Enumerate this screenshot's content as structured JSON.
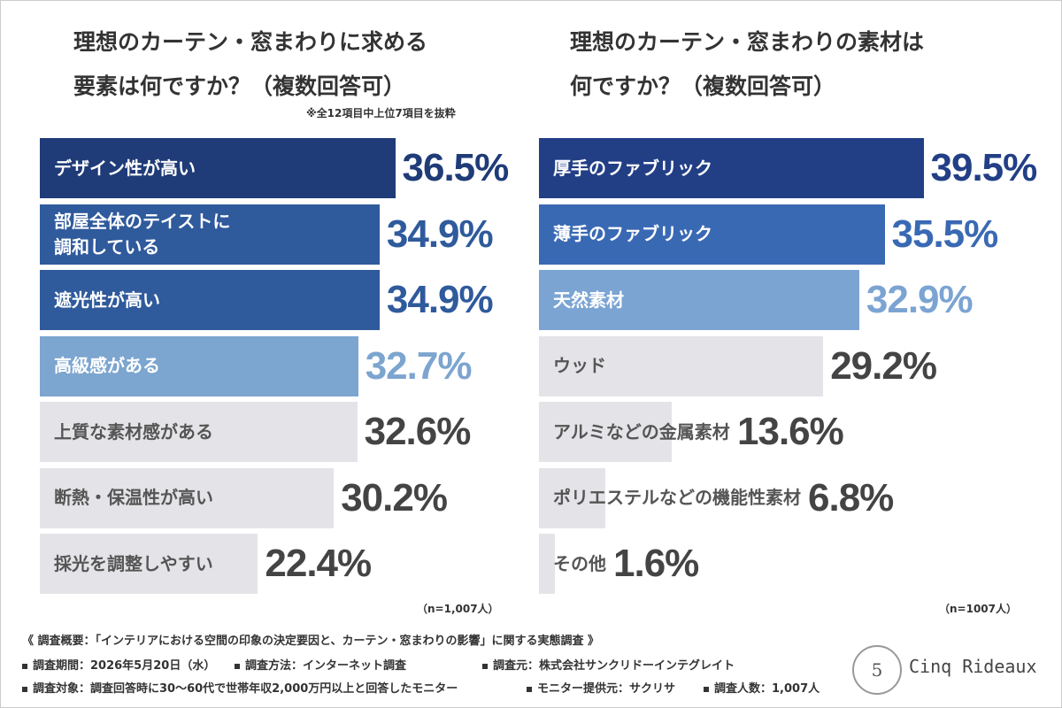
{
  "chart_data": [
    {
      "type": "bar",
      "orientation": "horizontal",
      "title": [
        "理想のカーテン・窓まわりに求める",
        "要素は何ですか？（複数回答可）"
      ],
      "note": "※全12項目中上位7項目を抜粋",
      "sample": "（n=1,007人）",
      "categories": [
        "デザイン性が高い",
        "部屋全体のテイストに\n調和している",
        "遮光性が高い",
        "高級感がある",
        "上質な素材感がある",
        "断熱・保温性が高い",
        "採光を調整しやすい"
      ],
      "values": [
        36.5,
        34.9,
        34.9,
        32.7,
        32.6,
        30.2,
        22.4
      ],
      "value_labels": [
        "36.5%",
        "34.9%",
        "34.9%",
        "32.7%",
        "32.6%",
        "30.2%",
        "22.4%"
      ],
      "colors": [
        "#1f3b78",
        "#2f5a9c",
        "#2f5a9c",
        "#7ca5cf",
        "#e4e4e8",
        "#e4e4e8",
        "#e4e4e8"
      ]
    },
    {
      "type": "bar",
      "orientation": "horizontal",
      "title": [
        "理想のカーテン・窓まわりの素材は",
        "何ですか？（複数回答可）"
      ],
      "sample": "（n=1007人）",
      "categories": [
        "厚手のファブリック",
        "薄手のファブリック",
        "天然素材",
        "ウッド",
        "アルミなどの金属素材",
        "ポリエステルなどの機能性素材",
        "その他"
      ],
      "values": [
        39.5,
        35.5,
        32.9,
        29.2,
        13.6,
        6.8,
        1.6
      ],
      "value_labels": [
        "39.5%",
        "35.5%",
        "32.9%",
        "29.2%",
        "13.6%",
        "6.8%",
        "1.6%"
      ],
      "colors": [
        "#223f86",
        "#3a69b4",
        "#7ba4d3",
        "#e4e4e8",
        "#e4e4e8",
        "#e4e4e8",
        "#e4e4e8"
      ]
    }
  ],
  "footer": {
    "heading": "《 調査概要：「インテリアにおける空間の印象の決定要因と、カーテン・窓まわりの影響」に関する実態調査 》",
    "line1": [
      "調査期間：2026年5月20日（水）",
      "調査方法：インターネット調査",
      "調査元：株式会社サンクリドーインテグレイト"
    ],
    "line2": [
      "調査対象：調査回答時に30〜60代で世帯年収2,000万円以上と回答したモニター",
      "モニター提供元：サクリサ",
      "調査人数：1,007人"
    ]
  },
  "logo": {
    "badge": "5",
    "text": "Cinq Rideaux"
  }
}
